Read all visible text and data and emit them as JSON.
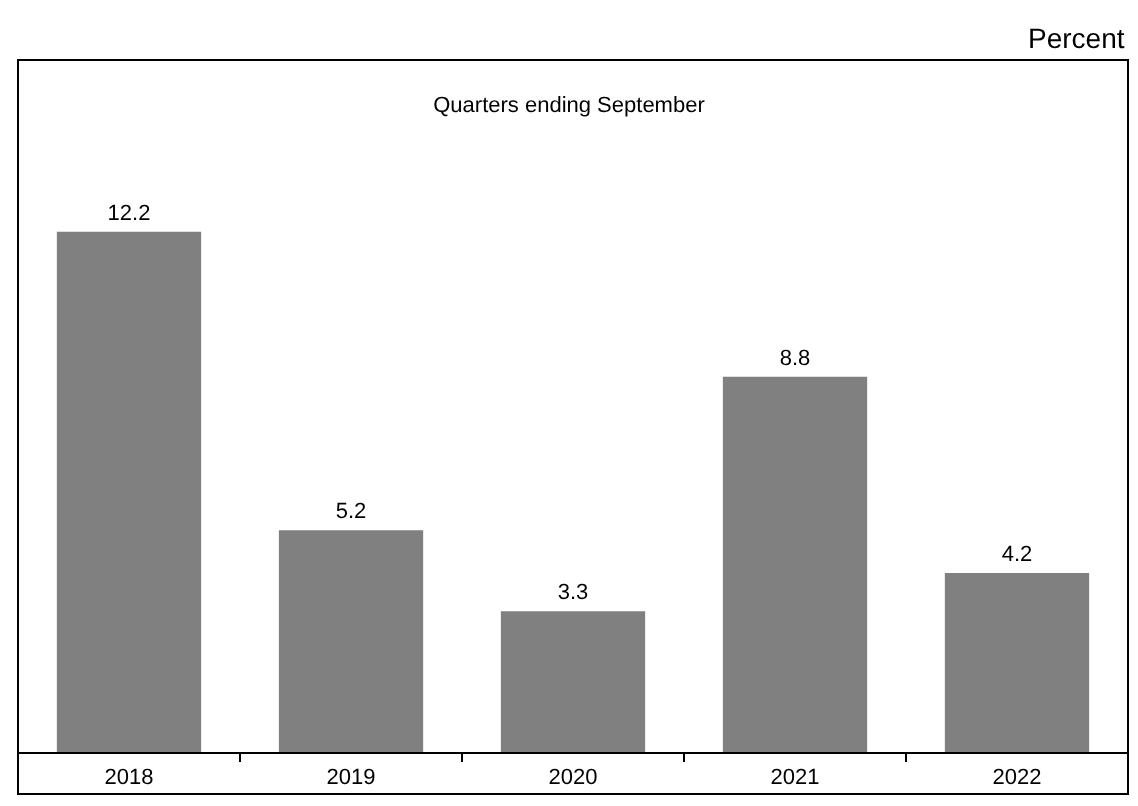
{
  "chart_data": {
    "type": "bar",
    "title": "Quarters ending September",
    "annotations": [
      "Percent"
    ],
    "categories": [
      "2018",
      "2019",
      "2020",
      "2021",
      "2022"
    ],
    "values": [
      12.2,
      5.2,
      3.3,
      8.8,
      4.2
    ],
    "color": "#808080",
    "data_labels": true
  }
}
